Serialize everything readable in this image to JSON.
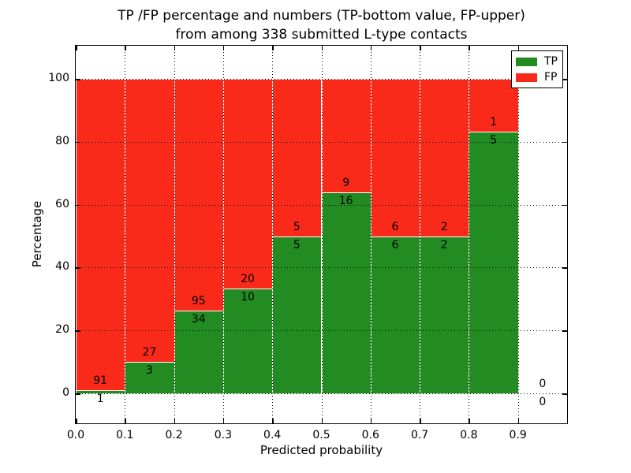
{
  "figure": {
    "title_line1": "TP /FP percentage and numbers (TP-bottom value, FP-upper)",
    "title_line2": "from among 338 submitted L-type contacts"
  },
  "chart_data": {
    "type": "bar",
    "variant": "stacked_percentage",
    "title": "TP /FP percentage and numbers (TP-bottom value, FP-upper)\nfrom among 338 submitted L-type contacts",
    "xlabel": "Predicted probability",
    "ylabel": "Percentage",
    "bins": [
      "0.0-0.1",
      "0.1-0.2",
      "0.2-0.3",
      "0.3-0.4",
      "0.4-0.5",
      "0.5-0.6",
      "0.6-0.7",
      "0.7-0.8",
      "0.8-0.9",
      "0.9-1.0"
    ],
    "bin_centers": [
      0.05,
      0.15,
      0.25,
      0.35,
      0.45,
      0.55,
      0.65,
      0.75,
      0.85,
      0.95
    ],
    "series": [
      {
        "name": "TP",
        "color": "#228B22",
        "counts": [
          1,
          3,
          34,
          10,
          5,
          16,
          6,
          2,
          5,
          0
        ],
        "percent": [
          1.1,
          10.0,
          26.4,
          33.3,
          50.0,
          64.0,
          50.0,
          50.0,
          83.3,
          0.0
        ]
      },
      {
        "name": "FP",
        "color": "#FA2A1A",
        "counts": [
          91,
          27,
          95,
          20,
          5,
          9,
          6,
          2,
          1,
          0
        ],
        "percent": [
          98.9,
          90.0,
          73.6,
          66.7,
          50.0,
          36.0,
          50.0,
          50.0,
          16.7,
          0.0
        ]
      }
    ],
    "xticks": [
      "0.0",
      "0.1",
      "0.2",
      "0.3",
      "0.4",
      "0.5",
      "0.6",
      "0.7",
      "0.8",
      "0.9"
    ],
    "yticks": [
      0,
      20,
      40,
      60,
      80,
      100
    ],
    "xlim": [
      0.0,
      1.0
    ],
    "ylim": [
      -9.5,
      110.5
    ],
    "grid": true,
    "grid_style": "dotted",
    "legend": {
      "position": "upper right",
      "items": [
        {
          "label": "TP",
          "color": "#228B22"
        },
        {
          "label": "FP",
          "color": "#FA2A1A"
        }
      ]
    }
  }
}
